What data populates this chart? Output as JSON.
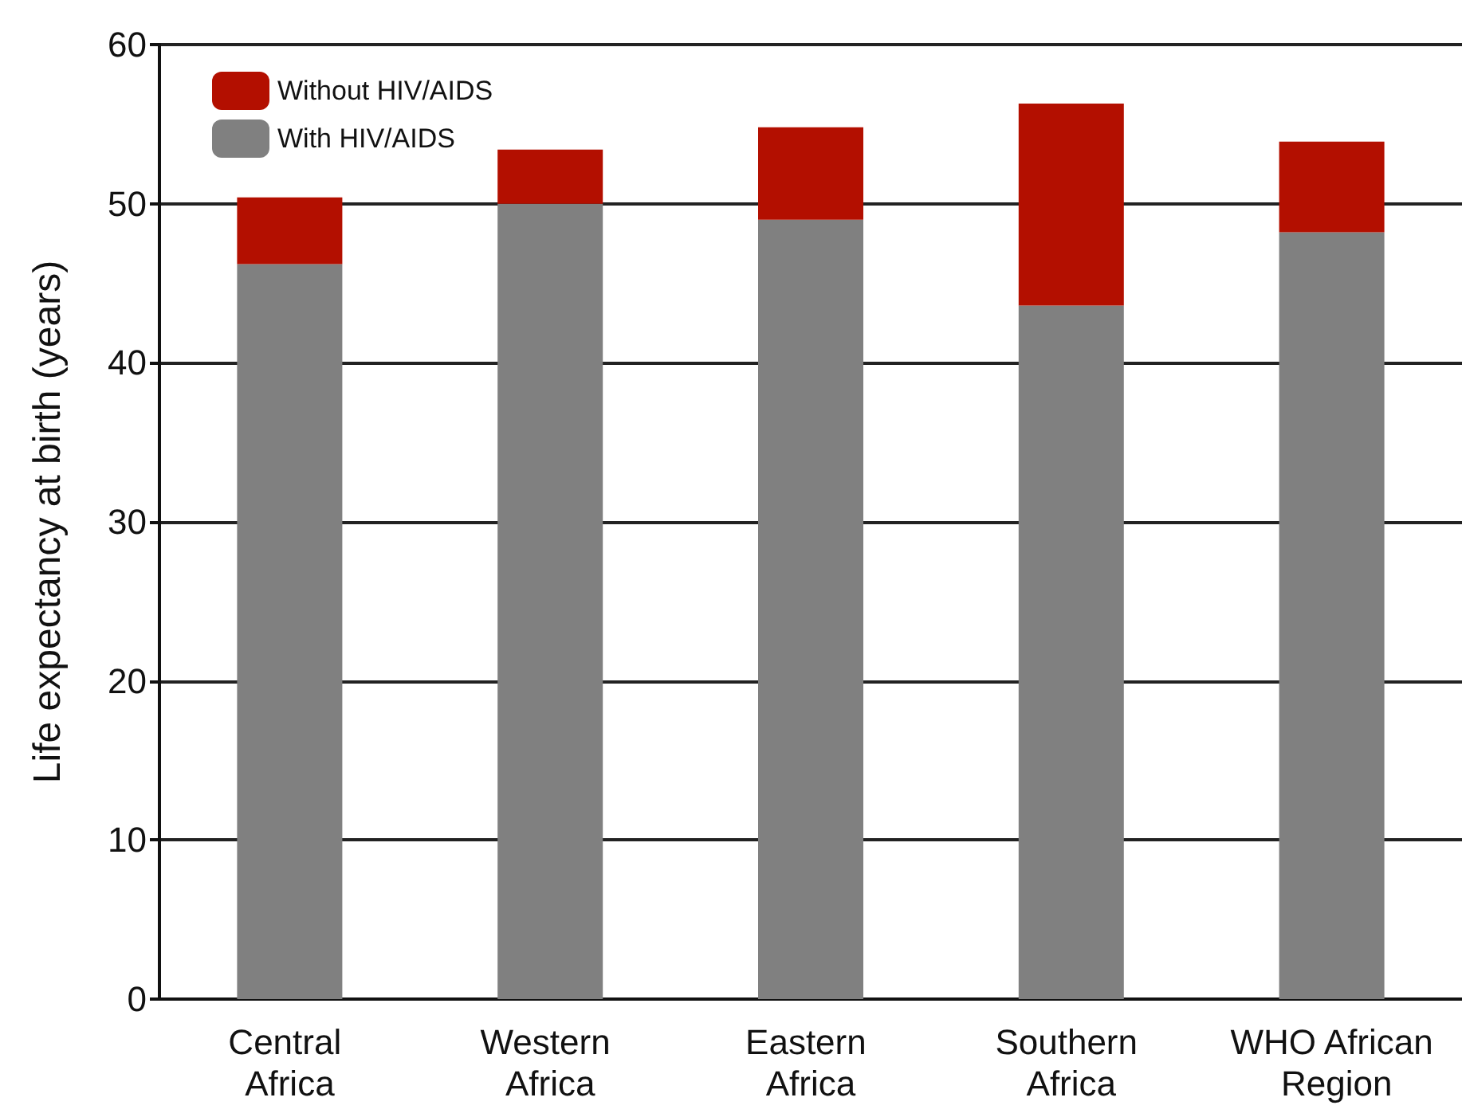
{
  "chart_data": {
    "type": "bar",
    "stacked": true,
    "ylabel": "Life expectancy at birth (years)",
    "categories": [
      "Central Africa",
      "Western Africa",
      "Eastern Africa",
      "Southern Africa",
      "WHO African Region"
    ],
    "series": [
      {
        "name": "With HIV/AIDS",
        "color": "#808080",
        "values": [
          46.2,
          50.0,
          49.0,
          43.6,
          48.2
        ]
      },
      {
        "name": "Without HIV/AIDS",
        "color": "#b30f00",
        "values": [
          4.2,
          3.4,
          5.8,
          12.7,
          5.7
        ]
      }
    ],
    "ylim": [
      0,
      60
    ],
    "yticks": [
      0,
      10,
      20,
      30,
      40,
      50,
      60
    ],
    "grid": "y",
    "legend": "top left"
  }
}
